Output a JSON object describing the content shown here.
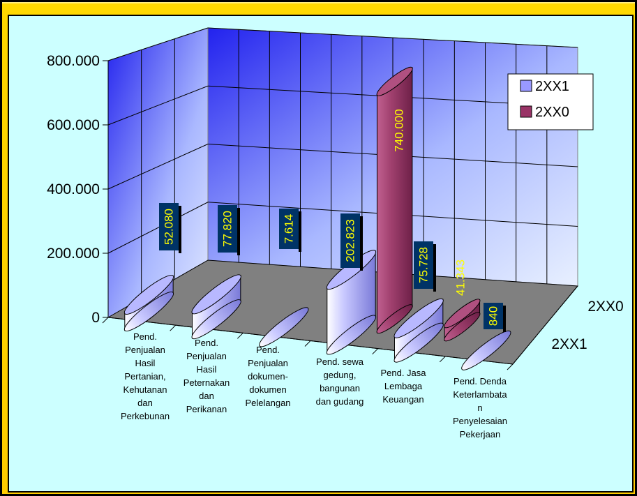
{
  "chart_data": {
    "type": "bar",
    "style": "3d-cylinder",
    "categories": [
      "Pend. Penjualan Hasil Pertanian, Kehutanan dan Perkebunan",
      "Pend. Penjualan Hasil Peternakan dan Perikanan",
      "Pend. Penjualan dokumen-dokumen Pelelangan",
      "Pend. sewa gedung, bangunan dan gudang",
      "Pend. Jasa Lembaga Keuangan",
      "Pend. Denda Keterlambatan Penyelesaian Pekerjaan"
    ],
    "category_lines": [
      [
        "Pend.",
        "Penjualan",
        "Hasil",
        "Pertanian,",
        "Kehutanan",
        "dan",
        "Perkebunan"
      ],
      [
        "Pend.",
        "Penjualan",
        "Hasil",
        "Peternakan",
        "dan",
        "Perikanan"
      ],
      [
        "Pend.",
        "Penjualan",
        "dokumen-",
        "dokumen",
        "Pelelangan"
      ],
      [
        "Pend. sewa",
        "gedung,",
        "bangunan",
        "dan gudang"
      ],
      [
        "Pend. Jasa",
        "Lembaga",
        "Keuangan"
      ],
      [
        "Pend. Denda",
        "Keterlambata",
        "n",
        "Penyelesaian",
        "Pekerjaan"
      ]
    ],
    "series": [
      {
        "name": "2XX1",
        "color": "#9999ff",
        "values": [
          52080,
          77820,
          7614,
          202823,
          75728,
          840
        ],
        "labels": [
          "52.080",
          "77.820",
          "7.614",
          "202.823",
          "75.728",
          "840"
        ]
      },
      {
        "name": "2XX0",
        "color": "#993366",
        "values": [
          0,
          0,
          0,
          740000,
          41343,
          0
        ],
        "labels": [
          "",
          "",
          "",
          "740.000",
          "41.343",
          ""
        ]
      }
    ],
    "depth_labels": [
      "2XX0",
      "2XX1"
    ],
    "y_ticks": [
      "800.000",
      "600.000",
      "400.000",
      "200.000",
      "0"
    ],
    "ylim": [
      0,
      800000
    ],
    "legend_position": "top-right",
    "grid": true,
    "colors": {
      "frame": "#ffcc00",
      "plot_background": "#ccffff",
      "wall": "#3333ff",
      "floor": "#808080",
      "label_box": "#003366",
      "label_text": "#ffff00"
    }
  }
}
